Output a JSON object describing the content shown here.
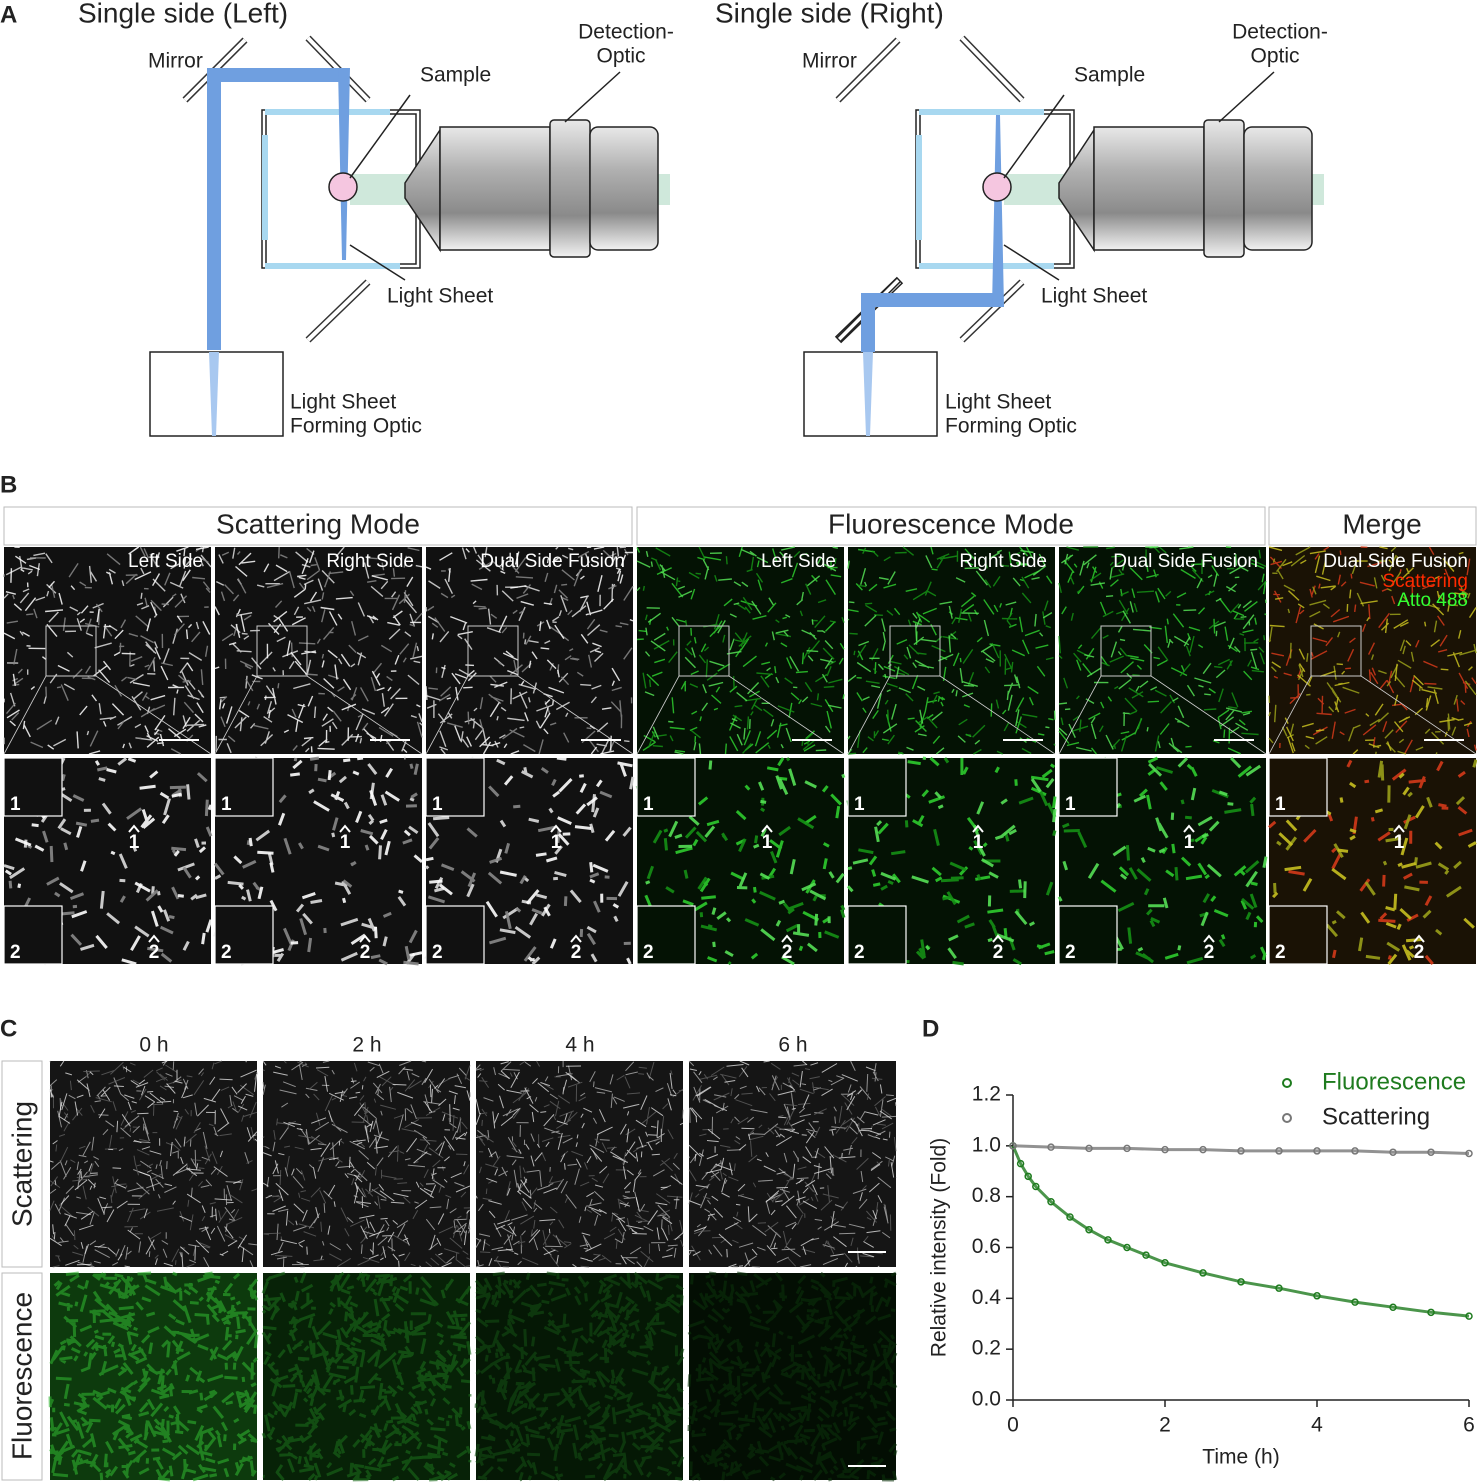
{
  "panel_labels": [
    "A",
    "B",
    "C",
    "D"
  ],
  "panel_a": {
    "left": {
      "title": "Single side (Left)",
      "mirror": "Mirror",
      "sample": "Sample",
      "detection": [
        "Detection-",
        "Optic"
      ],
      "light_sheet": "Light Sheet",
      "forming": [
        "Light Sheet",
        "Forming Optic"
      ]
    },
    "right": {
      "title": "Single side (Right)",
      "mirror": "Mirror",
      "sample": "Sample",
      "detection": [
        "Detection-",
        "Optic"
      ],
      "light_sheet": "Light Sheet",
      "forming": [
        "Light Sheet",
        "Forming Optic"
      ]
    }
  },
  "panel_b": {
    "groups": [
      "Scattering Mode",
      "Fluorescence Mode",
      "Merge"
    ],
    "tiles": [
      "Left Side",
      "Right Side",
      "Dual Side Fusion",
      "Left Side",
      "Right Side",
      "Dual Side Fusion",
      "Dual Side Fusion"
    ],
    "merge_legend": [
      "Scattering",
      "Atto 488"
    ],
    "markers": [
      "1",
      "2"
    ]
  },
  "panel_c": {
    "times": [
      "0 h",
      "2 h",
      "4 h",
      "6 h"
    ],
    "rows": [
      "Scattering",
      "Fluorescence"
    ]
  },
  "chart_data": {
    "type": "scatter",
    "xlabel": "Time (h)",
    "ylabel": "Relative intensity (Fold)",
    "xlim": [
      0,
      6
    ],
    "ylim": [
      0,
      1.2
    ],
    "xticks": [
      0,
      2,
      4,
      6
    ],
    "yticks": [
      {
        "value": 0,
        "label": "0.0"
      },
      0.2,
      0.4,
      0.6,
      0.8,
      {
        "value": 1,
        "label": "1.0"
      },
      1.2
    ],
    "series": [
      {
        "name": "Fluorescence",
        "color": "#1e7b1e",
        "x": [
          0,
          0.1,
          0.2,
          0.3,
          0.5,
          0.75,
          1,
          1.25,
          1.5,
          1.75,
          2,
          2.5,
          3,
          3.5,
          4,
          4.5,
          5,
          5.5,
          6
        ],
        "values": [
          1.0,
          0.93,
          0.88,
          0.84,
          0.78,
          0.72,
          0.67,
          0.63,
          0.6,
          0.57,
          0.54,
          0.5,
          0.465,
          0.44,
          0.41,
          0.385,
          0.365,
          0.345,
          0.33
        ]
      },
      {
        "name": "Scattering",
        "color": "#777777",
        "x": [
          0,
          0.5,
          1,
          1.5,
          2,
          2.5,
          3,
          3.5,
          4,
          4.5,
          5,
          5.5,
          6
        ],
        "values": [
          1.0,
          0.995,
          0.99,
          0.99,
          0.985,
          0.985,
          0.98,
          0.98,
          0.98,
          0.98,
          0.975,
          0.975,
          0.97
        ]
      }
    ]
  }
}
